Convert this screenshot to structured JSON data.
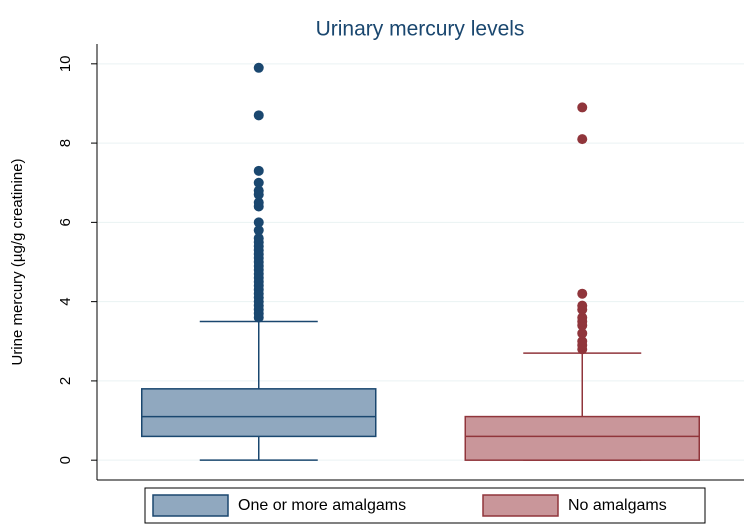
{
  "chart_data": {
    "type": "box",
    "title": "Urinary mercury levels",
    "y_label": "Urine mercury (µg/g creatinine)",
    "ylim": [
      -0.5,
      10.5
    ],
    "yticks": [
      0,
      2,
      4,
      6,
      8,
      10
    ],
    "grid": true,
    "series": [
      {
        "name": "One or more amalgams",
        "color": "#1a476f",
        "fill": "#90a8bf",
        "min": 0,
        "q1": 0.6,
        "median": 1.1,
        "q3": 1.8,
        "max": 3.5,
        "outliers": [
          3.6,
          3.7,
          3.8,
          3.9,
          4.0,
          4.1,
          4.2,
          4.3,
          4.4,
          4.5,
          4.6,
          4.7,
          4.8,
          4.9,
          5.0,
          5.1,
          5.2,
          5.3,
          5.4,
          5.5,
          5.6,
          5.8,
          6.0,
          6.4,
          6.5,
          6.7,
          6.8,
          7.0,
          7.3,
          8.7,
          9.9
        ]
      },
      {
        "name": "No amalgams",
        "color": "#90353b",
        "fill": "#c9969a",
        "min": 0,
        "q1": 0,
        "median": 0.6,
        "q3": 1.1,
        "max": 2.7,
        "outliers": [
          2.8,
          2.9,
          3.0,
          3.2,
          3.4,
          3.5,
          3.6,
          3.8,
          3.9,
          4.2,
          8.1,
          8.9
        ]
      }
    ]
  }
}
